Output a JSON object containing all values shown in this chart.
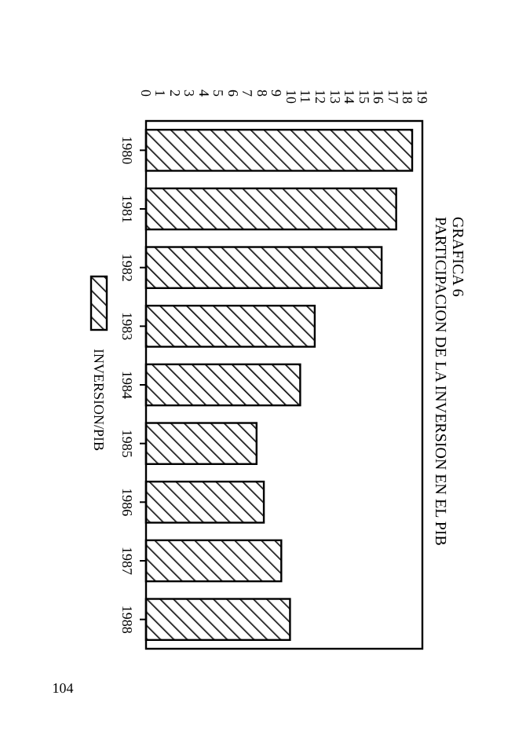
{
  "chart_data": {
    "type": "bar",
    "orientation": "horizontal",
    "title": "GRAFICA 6",
    "subtitle": "PARTICIPACION DE LA INVERSION EN EL PIB",
    "categories": [
      "1980",
      "1981",
      "1982",
      "1983",
      "1984",
      "1985",
      "1986",
      "1987",
      "1988"
    ],
    "series": [
      {
        "name": "INVERSION/PIB",
        "color": "#000000",
        "values": [
          18.3,
          17.2,
          16.2,
          11.6,
          10.6,
          7.6,
          8.1,
          9.3,
          9.9
        ]
      }
    ],
    "xlim": [
      0,
      19
    ],
    "xticks": [
      0,
      1,
      2,
      3,
      4,
      5,
      6,
      7,
      8,
      9,
      10,
      11,
      12,
      13,
      14,
      15,
      16,
      17,
      18,
      19
    ],
    "legend": "left",
    "grid": false,
    "annotations": [
      "104"
    ]
  }
}
